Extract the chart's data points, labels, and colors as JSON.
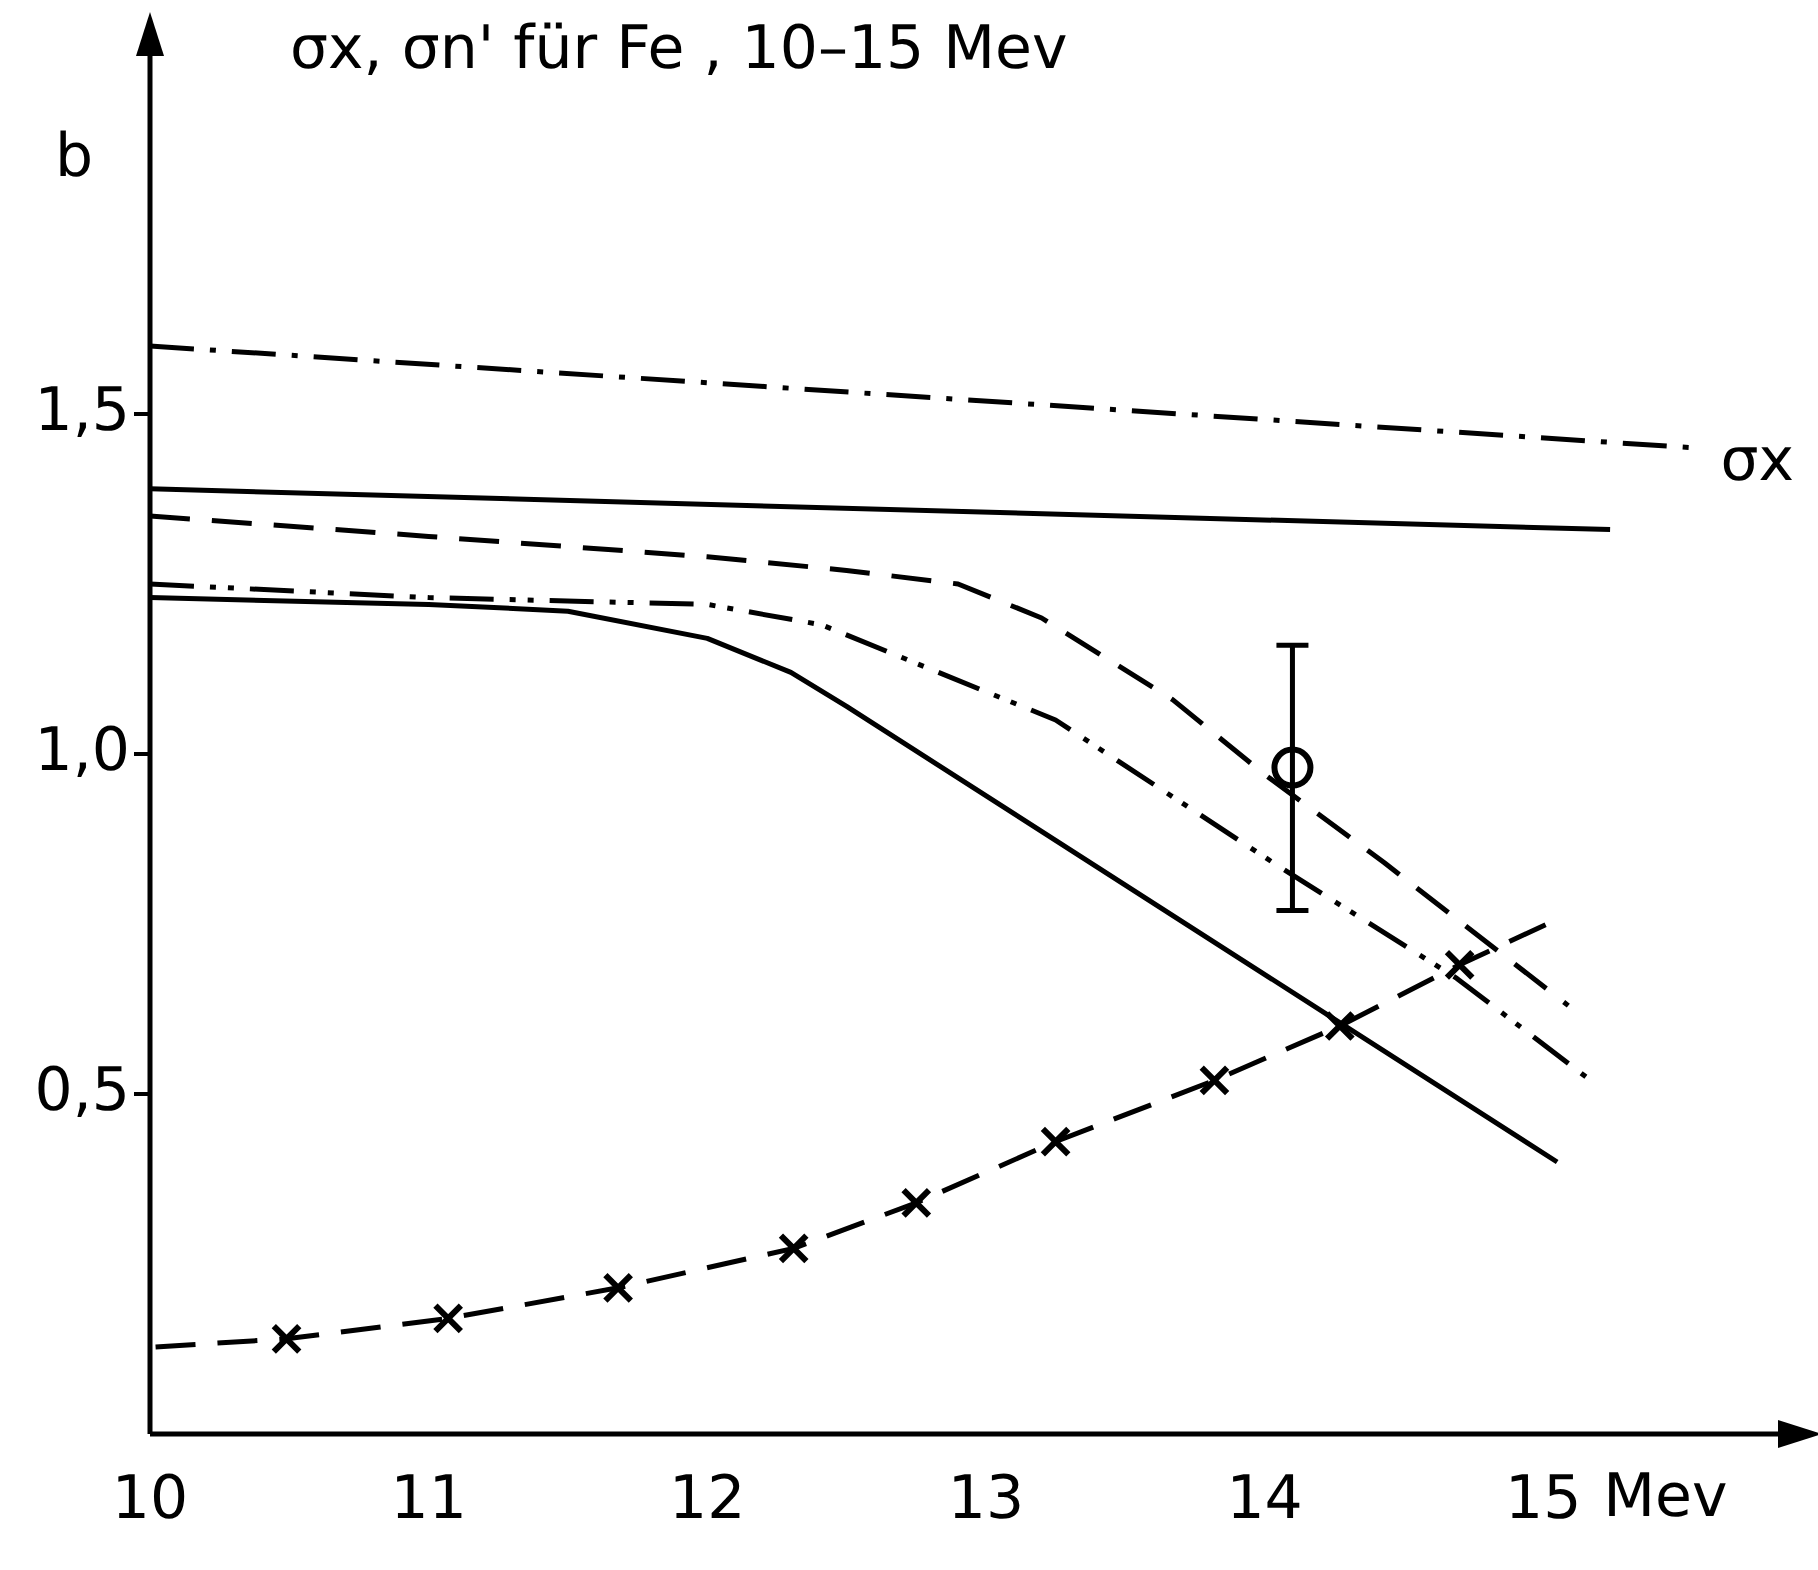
{
  "chart_data": {
    "type": "line",
    "title": "σx, σn' für Fe , 10–15 Mev",
    "xlabel": "Mev",
    "ylabel": "b",
    "xlim": [
      10,
      15.9
    ],
    "xticks": [
      10,
      11,
      12,
      13,
      14,
      15
    ],
    "ylim": [
      0,
      2.05
    ],
    "yticks": [
      {
        "value": 0.5,
        "label": "0,5"
      },
      {
        "value": 1.0,
        "label": "1,0"
      },
      {
        "value": 1.5,
        "label": "1,5"
      }
    ],
    "series": [
      {
        "name": "σx",
        "color": "#000000",
        "line_style": "dashdot",
        "x": [
          10,
          15.55
        ],
        "values": [
          1.6,
          1.45
        ]
      },
      {
        "color": "#000000",
        "line_style": "solid",
        "x": [
          10,
          15.24
        ],
        "values": [
          1.39,
          1.33
        ]
      },
      {
        "color": "#000000",
        "line_style": "dashed",
        "x": [
          10,
          11,
          12,
          12.5,
          12.9,
          13.2,
          13.67,
          14.0,
          14.43,
          15.09
        ],
        "values": [
          1.35,
          1.32,
          1.29,
          1.27,
          1.25,
          1.2,
          1.08,
          0.97,
          0.84,
          0.63
        ]
      },
      {
        "color": "#000000",
        "line_style": "dashdotdot",
        "x": [
          10,
          11,
          12,
          12.41,
          13.25,
          14.05,
          14.69,
          15.17
        ],
        "values": [
          1.25,
          1.23,
          1.22,
          1.19,
          1.05,
          0.835,
          0.67,
          0.52
        ]
      },
      {
        "color": "#000000",
        "line_style": "solid",
        "x": [
          10,
          11,
          11.5,
          12,
          12.3,
          12.5,
          15.05
        ],
        "values": [
          1.23,
          1.22,
          1.21,
          1.17,
          1.12,
          1.07,
          0.4
        ]
      },
      {
        "color": "#000000",
        "line_style": "dashed",
        "x": [
          10.02,
          10.49,
          11.07,
          11.68,
          12.31,
          12.75,
          13.25,
          13.82,
          14.27,
          14.7,
          15.04
        ],
        "values": [
          0.128,
          0.14,
          0.17,
          0.215,
          0.273,
          0.34,
          0.43,
          0.52,
          0.6,
          0.69,
          0.755
        ]
      },
      {
        "color": "#000000",
        "type": "scatter",
        "marker": "cross",
        "x": [
          10.49,
          11.07,
          11.68,
          12.31,
          12.75,
          13.25,
          13.82,
          14.27,
          14.7
        ],
        "values": [
          0.14,
          0.17,
          0.215,
          0.273,
          0.34,
          0.43,
          0.52,
          0.6,
          0.69
        ]
      },
      {
        "color": "#000000",
        "type": "scatter",
        "marker": "circle",
        "x": [
          14.1
        ],
        "values": [
          0.98
        ],
        "errors": [
          [
            0.77,
            1.16
          ]
        ]
      }
    ]
  }
}
